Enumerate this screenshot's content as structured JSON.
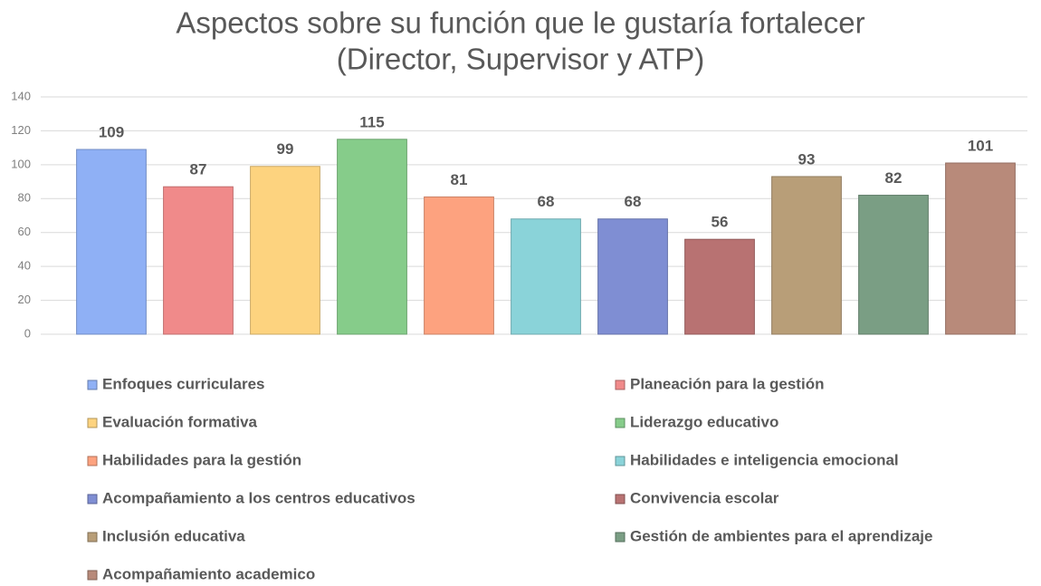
{
  "chart_data": {
    "type": "bar",
    "title": [
      "Aspectos sobre su función que le gustaría fortalecer",
      "(Director, Supervisor y ATP)"
    ],
    "categories": [
      "Enfoques curriculares",
      "Planeación para la gestión",
      "Evaluación formativa",
      "Liderazgo educativo",
      "Habilidades para la gestión",
      "Habilidades e inteligencia emocional",
      "Acompañamiento a los centros educativos",
      "Convivencia escolar",
      "Inclusión educativa",
      "Gestión de ambientes para el aprendizaje",
      "Acompañamiento academico"
    ],
    "values": [
      109,
      87,
      99,
      115,
      81,
      68,
      68,
      56,
      93,
      82,
      101
    ],
    "colors": [
      "#8fb0f5",
      "#f08a8a",
      "#fdd37f",
      "#86cc8a",
      "#fda27f",
      "#8ad3d9",
      "#7f8ed3",
      "#b87272",
      "#b89e78",
      "#7a9e84",
      "#b88a7a"
    ],
    "ylim": [
      0,
      140
    ],
    "yticks": [
      0,
      20,
      40,
      60,
      80,
      100,
      120,
      140
    ],
    "grid": true,
    "legend": "bottom"
  }
}
